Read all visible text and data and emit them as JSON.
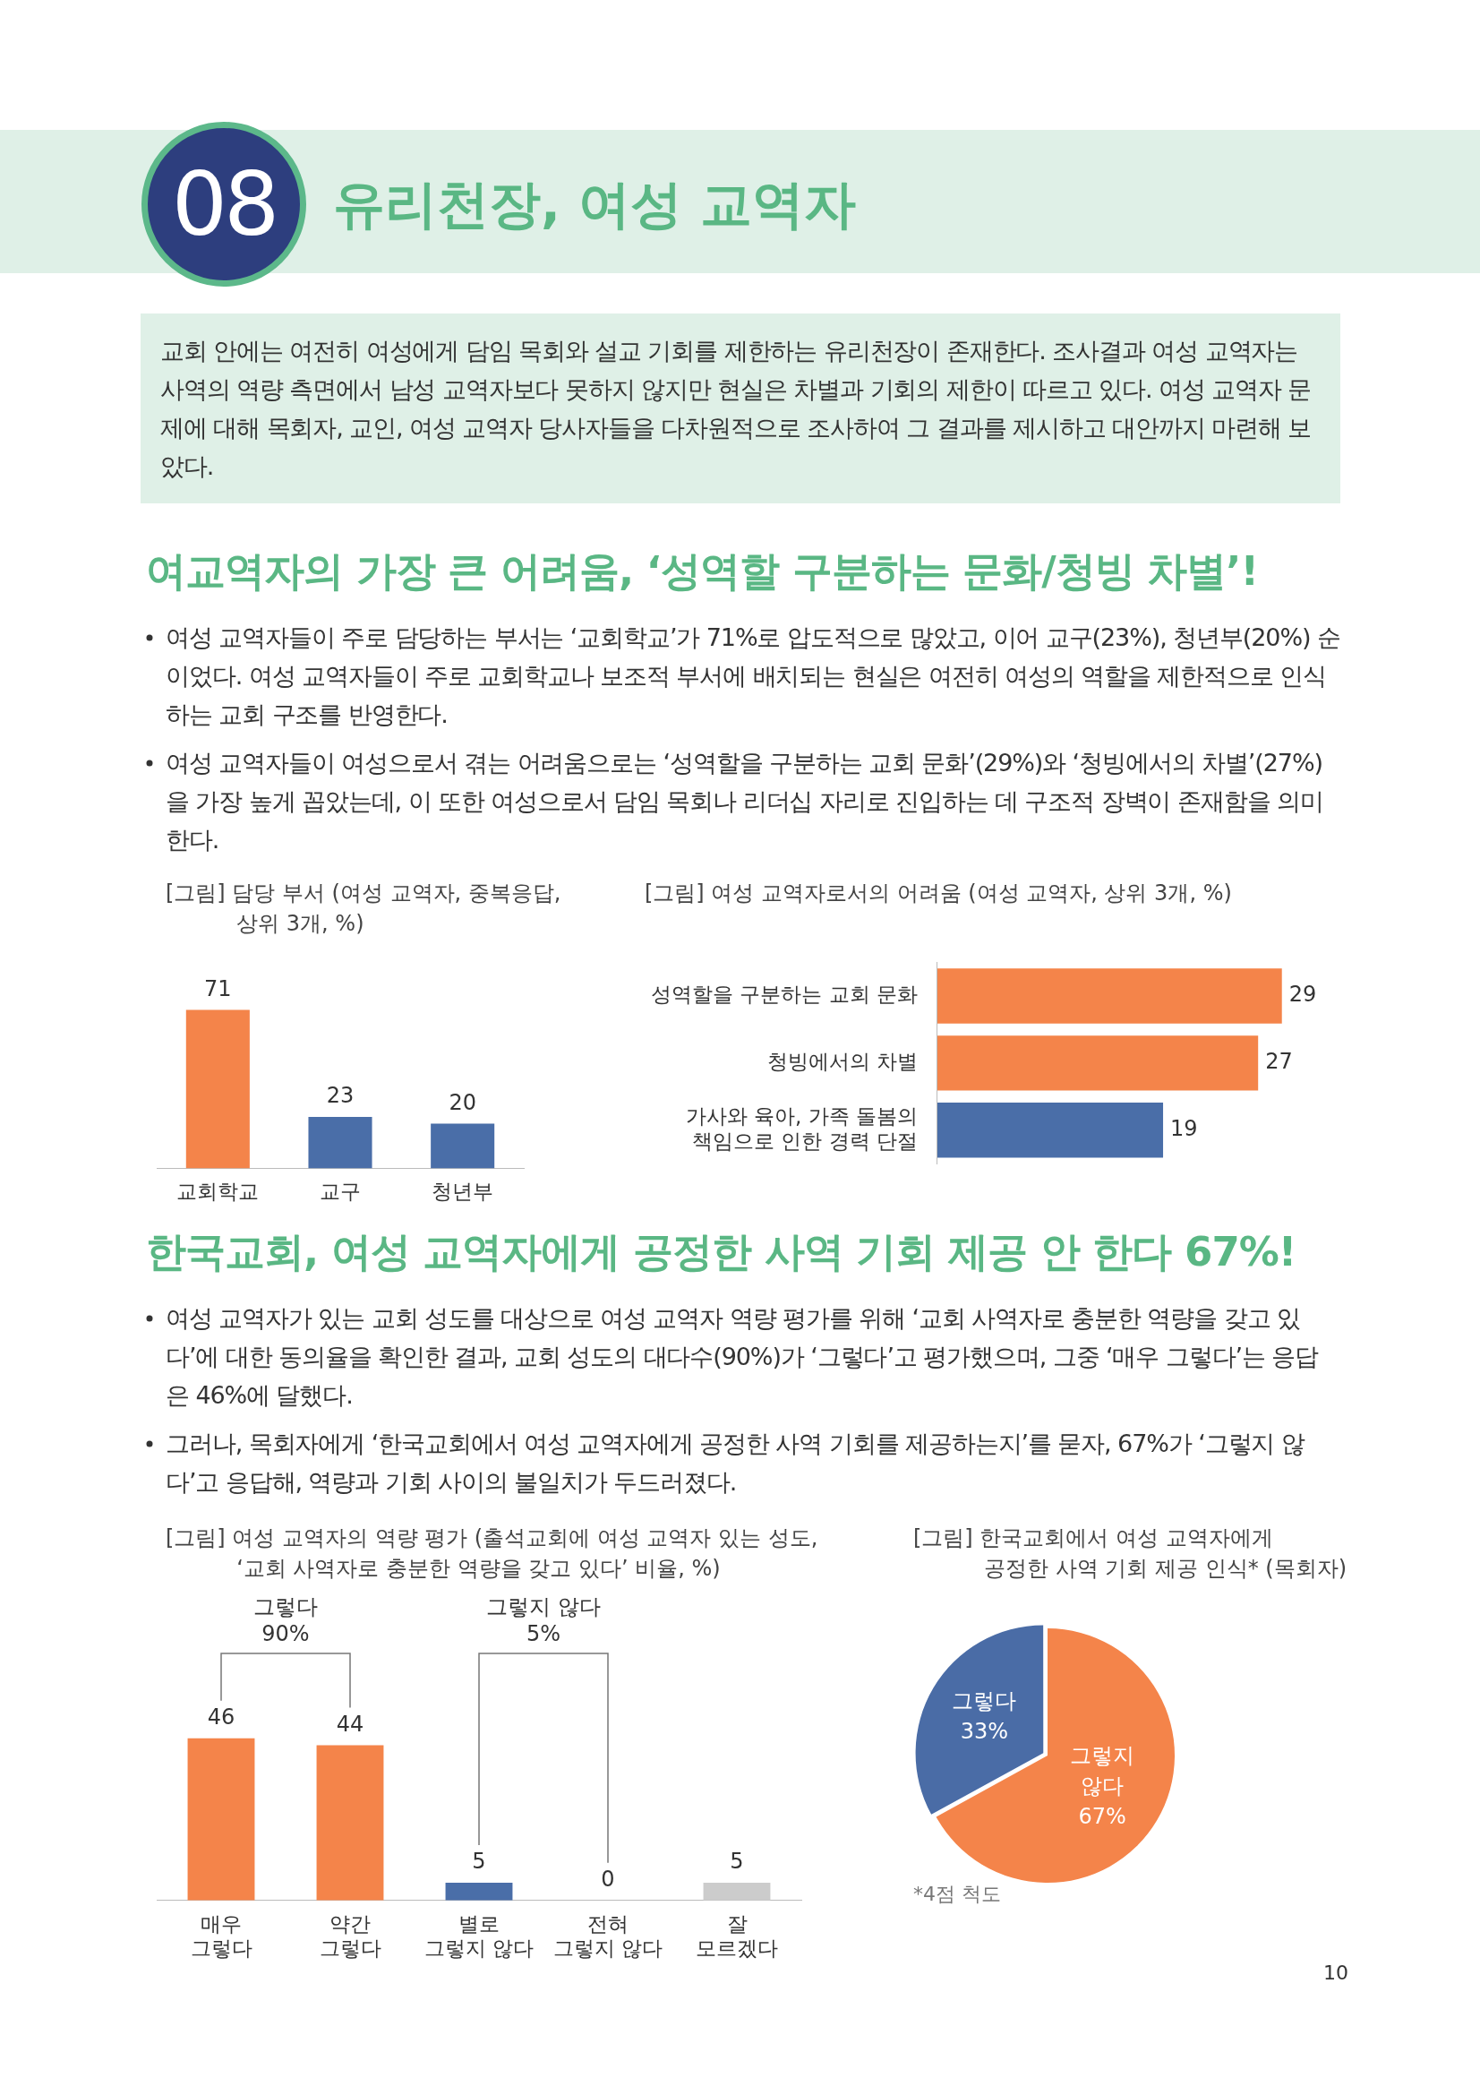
{
  "chart_data": [
    {
      "type": "bar",
      "title": "[그림] 담당 부서 (여성 교역자, 중복응답,\n상위 3개, %)",
      "categories": [
        "교회학교",
        "교구",
        "청년부"
      ],
      "values": [
        71,
        23,
        20
      ],
      "colors": [
        "#f4844a",
        "#4a6ea8",
        "#4a6ea8"
      ],
      "data_labels": true,
      "annotations": [
        "08",
        "유리천장, 여성 교역자",
        "교회 안에는 여전히 여성에게 담임 목회와 설교 기회를 제한하는 유리천장이 존재한다. 조사결과 여성 교역자는 사역의 역량 측면에서 남성 교역자보다 못하지 않지만 현실은 차별과 기회의 제한이 따르고 있다. 여성 교역자 문제에 대해 목회자, 교인, 여성 교역자 당사자들을 다차원적으로 조사하여 그 결과를 제시하고 대안까지 마련해 보았다.",
        "여교역자의 가장 큰 어려움, ‘성역할 구분하는 문화/청빙 차별’!",
        "여성 교역자들이 주로 담당하는 부서는 ‘교회학교’가 71%로 압도적으로 많았고, 이어 교구(23%), 청년부(20%) 순이었다. 여성 교역자들이 주로 교회학교나 보조적 부서에 배치되는 현실은 여전히 여성의 역할을 제한적으로 인식하는 교회 구조를 반영한다.",
        "여성 교역자들이 여성으로서 겪는 어려움으로는 ‘성역할을 구분하는 교회 문화’(29%)와 ‘청빙에서의 차별’(27%)을 가장 높게 꼽았는데, 이 또한 여성으로서 담임 목회나 리더십 자리로 진입하는 데 구조적 장벽이 존재함을 의미한다."
      ]
    },
    {
      "type": "bar",
      "orientation": "horizontal",
      "title": "[그림] 여성 교역자로서의 어려움 (여성 교역자, 상위 3개, %)",
      "categories": [
        "성역할을 구분하는 교회 문화",
        "청빙에서의 차별",
        "가사와 육아, 가족 돌봄의\n책임으로 인한 경력 단절"
      ],
      "values": [
        29,
        27,
        19
      ],
      "colors": [
        "#f4844a",
        "#f4844a",
        "#4a6ea8"
      ],
      "data_labels": true
    },
    {
      "type": "bar",
      "title": "[그림] 여성 교역자의 역량 평가 (출석교회에 여성 교역자 있는 성도,\n‘교회 사역자로 충분한 역량을 갖고 있다’ 비율, %)",
      "categories": [
        "매우\n그렇다",
        "약간\n그렇다",
        "별로\n그렇지 않다",
        "전혀\n그렇지 않다",
        "잘\n모르겠다"
      ],
      "values": [
        46,
        44,
        5,
        0,
        5
      ],
      "colors": [
        "#f4844a",
        "#f4844a",
        "#4a6ea8",
        "#4a6ea8",
        "#cccccc"
      ],
      "data_labels": true,
      "annotations": [
        "한국교회, 여성 교역자에게 공정한 사역 기회 제공 안 한다 67%!",
        "여성 교역자가 있는 교회 성도를 대상으로 여성 교역자 역량 평가를 위해 ‘교회 사역자로 충분한 역량을 갖고 있다’에 대한 동의율을 확인한 결과, 교회 성도의 대다수(90%)가 ‘그렇다’고 평가했으며, 그중 ‘매우 그렇다’는 응답은 46%에 달했다.",
        "그러나, 목회자에게 ‘한국교회에서 여성 교역자에게 공정한 사역 기회를 제공하는지’를 묻자, 67%가 ‘그렇지 않다’고 응답해, 역량과 기회 사이의 불일치가 두드러졌다.",
        "그렇다\n90%",
        "그렇지 않다\n5%"
      ]
    },
    {
      "type": "pie",
      "title": "[그림] 한국교회에서 여성 교역자에게\n공정한 사역 기회 제공 인식* (목회자)",
      "categories": [
        "그렇다",
        "그렇지 않다"
      ],
      "values": [
        33,
        67
      ],
      "value_labels": [
        "33%",
        "67%"
      ],
      "colors": [
        "#4a6ca6",
        "#f4844a"
      ],
      "annotations": [
        "*4점 척도",
        "10"
      ]
    }
  ]
}
